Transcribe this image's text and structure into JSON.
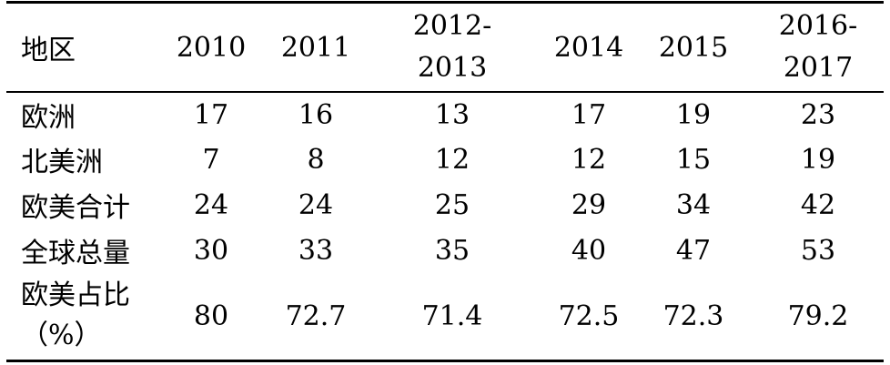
{
  "table": {
    "headers": {
      "region": "地区",
      "y2010": "2010",
      "y2011": "2011",
      "y2012_line1": "2012-",
      "y2012_line2": "2013",
      "y2014": "2014",
      "y2015": "2015",
      "y2016_line1": "2016-",
      "y2016_line2": "2017"
    },
    "rows": [
      {
        "label": "欧洲",
        "values": [
          "17",
          "16",
          "13",
          "17",
          "19",
          "23"
        ]
      },
      {
        "label": "北美洲",
        "values": [
          "7",
          "8",
          "12",
          "12",
          "15",
          "19"
        ]
      },
      {
        "label": "欧美合计",
        "values": [
          "24",
          "24",
          "25",
          "29",
          "34",
          "42"
        ]
      },
      {
        "label": "全球总量",
        "values": [
          "30",
          "33",
          "35",
          "40",
          "47",
          "53"
        ]
      },
      {
        "label_line1": "欧美占比",
        "label_line2": "（%）",
        "values": [
          "80",
          "72.7",
          "71.4",
          "72.5",
          "72.3",
          "79.2"
        ]
      }
    ]
  }
}
